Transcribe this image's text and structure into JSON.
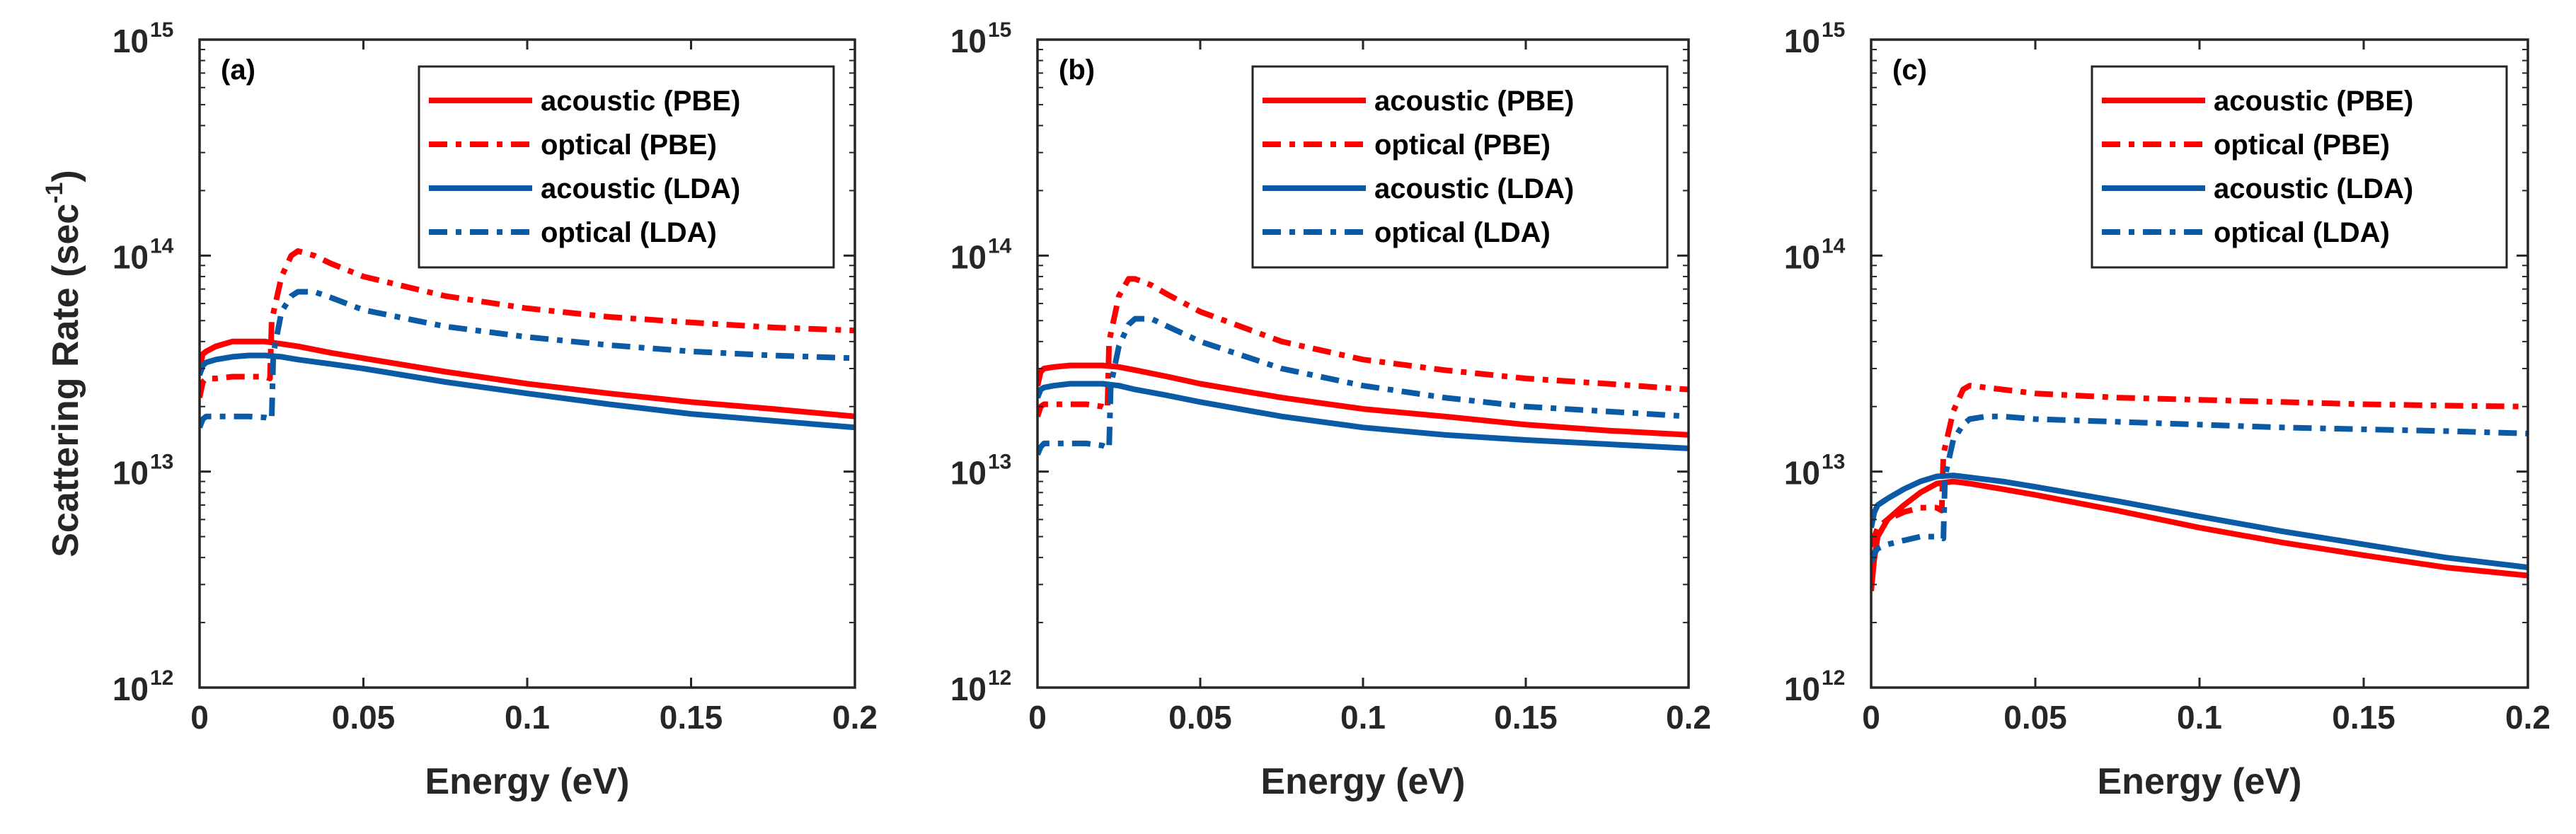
{
  "colors": {
    "pbe": "#ff0000",
    "lda": "#0b5aa6",
    "axis": "#262626"
  },
  "chart_data": [
    {
      "type": "line",
      "panel": "(a)",
      "xlabel": "Energy (eV)",
      "ylabel": "Scattering Rate (sec",
      "ylabel_sup": "-1",
      "ylabel_tail": ")",
      "yscale": "log",
      "xlim": [
        0,
        0.2
      ],
      "ylim": [
        1000000000000.0,
        1000000000000000.0
      ],
      "xticks": [
        "0",
        "0.05",
        "0.1",
        "0.15",
        "0.2"
      ],
      "yticks": [
        {
          "base": "10",
          "exp": "12"
        },
        {
          "base": "10",
          "exp": "13"
        },
        {
          "base": "10",
          "exp": "14"
        },
        {
          "base": "10",
          "exp": "15"
        }
      ],
      "legend_position": "top-right",
      "series": [
        {
          "name": "acoustic (PBE)",
          "color": "#ff0000",
          "style": "solid",
          "x": [
            0,
            0.001,
            0.002,
            0.005,
            0.01,
            0.015,
            0.02,
            0.025,
            0.03,
            0.04,
            0.05,
            0.075,
            0.1,
            0.125,
            0.15,
            0.175,
            0.2
          ],
          "y": [
            30000000000000.0,
            35000000000000.0,
            36000000000000.0,
            38000000000000.0,
            40000000000000.0,
            40000000000000.0,
            40000000000000.0,
            39000000000000.0,
            38000000000000.0,
            35500000000000.0,
            33500000000000.0,
            29000000000000.0,
            25500000000000.0,
            23000000000000.0,
            21000000000000.0,
            19500000000000.0,
            18000000000000.0
          ]
        },
        {
          "name": "optical (PBE)",
          "color": "#ff0000",
          "style": "dashdot",
          "x": [
            0,
            0.001,
            0.002,
            0.005,
            0.01,
            0.015,
            0.02,
            0.0215,
            0.022,
            0.025,
            0.028,
            0.03,
            0.035,
            0.04,
            0.05,
            0.075,
            0.1,
            0.125,
            0.15,
            0.175,
            0.2
          ],
          "y": [
            22000000000000.0,
            26000000000000.0,
            27000000000000.0,
            27000000000000.0,
            27500000000000.0,
            27500000000000.0,
            27500000000000.0,
            27000000000000.0,
            50000000000000.0,
            80000000000000.0,
            100000000000000.0,
            105000000000000.0,
            100000000000000.0,
            92000000000000.0,
            80000000000000.0,
            65000000000000.0,
            57000000000000.0,
            52000000000000.0,
            49000000000000.0,
            46500000000000.0,
            45000000000000.0
          ]
        },
        {
          "name": "acoustic (LDA)",
          "color": "#0b5aa6",
          "style": "solid",
          "x": [
            0,
            0.001,
            0.002,
            0.005,
            0.01,
            0.015,
            0.02,
            0.025,
            0.03,
            0.04,
            0.05,
            0.075,
            0.1,
            0.125,
            0.15,
            0.175,
            0.2
          ],
          "y": [
            28000000000000.0,
            31000000000000.0,
            32000000000000.0,
            33000000000000.0,
            34000000000000.0,
            34500000000000.0,
            34500000000000.0,
            34000000000000.0,
            33000000000000.0,
            31500000000000.0,
            30000000000000.0,
            26000000000000.0,
            23000000000000.0,
            20500000000000.0,
            18500000000000.0,
            17200000000000.0,
            16000000000000.0
          ]
        },
        {
          "name": "optical (LDA)",
          "color": "#0b5aa6",
          "style": "dashdot",
          "x": [
            0,
            0.001,
            0.002,
            0.005,
            0.01,
            0.015,
            0.02,
            0.022,
            0.0225,
            0.025,
            0.028,
            0.03,
            0.035,
            0.04,
            0.05,
            0.075,
            0.1,
            0.125,
            0.15,
            0.175,
            0.2
          ],
          "y": [
            16000000000000.0,
            17500000000000.0,
            18000000000000.0,
            18000000000000.0,
            18000000000000.0,
            18000000000000.0,
            17800000000000.0,
            17500000000000.0,
            35000000000000.0,
            55000000000000.0,
            65000000000000.0,
            68000000000000.0,
            68000000000000.0,
            64000000000000.0,
            56000000000000.0,
            47000000000000.0,
            42000000000000.0,
            38500000000000.0,
            36000000000000.0,
            34500000000000.0,
            33500000000000.0
          ]
        }
      ]
    },
    {
      "type": "line",
      "panel": "(b)",
      "xlabel": "Energy (eV)",
      "yscale": "log",
      "xlim": [
        0,
        0.2
      ],
      "ylim": [
        1000000000000.0,
        1000000000000000.0
      ],
      "xticks": [
        "0",
        "0.05",
        "0.1",
        "0.15",
        "0.2"
      ],
      "yticks": [
        {
          "base": "10",
          "exp": "12"
        },
        {
          "base": "10",
          "exp": "13"
        },
        {
          "base": "10",
          "exp": "14"
        },
        {
          "base": "10",
          "exp": "15"
        }
      ],
      "legend_position": "top-right",
      "series": [
        {
          "name": "acoustic (PBE)",
          "color": "#ff0000",
          "style": "solid",
          "x": [
            0,
            0.001,
            0.002,
            0.005,
            0.01,
            0.015,
            0.02,
            0.025,
            0.03,
            0.04,
            0.05,
            0.075,
            0.1,
            0.125,
            0.15,
            0.175,
            0.2
          ],
          "y": [
            25000000000000.0,
            29000000000000.0,
            30000000000000.0,
            30500000000000.0,
            31000000000000.0,
            31000000000000.0,
            31000000000000.0,
            30500000000000.0,
            29500000000000.0,
            27500000000000.0,
            25500000000000.0,
            22000000000000.0,
            19500000000000.0,
            18000000000000.0,
            16500000000000.0,
            15500000000000.0,
            14800000000000.0
          ]
        },
        {
          "name": "optical (PBE)",
          "color": "#ff0000",
          "style": "dashdot",
          "x": [
            0,
            0.001,
            0.002,
            0.005,
            0.01,
            0.015,
            0.02,
            0.0215,
            0.022,
            0.025,
            0.028,
            0.03,
            0.035,
            0.04,
            0.05,
            0.075,
            0.1,
            0.125,
            0.15,
            0.175,
            0.2
          ],
          "y": [
            18000000000000.0,
            20000000000000.0,
            20500000000000.0,
            20500000000000.0,
            20500000000000.0,
            20500000000000.0,
            20000000000000.0,
            19500000000000.0,
            40000000000000.0,
            65000000000000.0,
            78000000000000.0,
            78000000000000.0,
            73000000000000.0,
            66000000000000.0,
            55000000000000.0,
            40000000000000.0,
            33000000000000.0,
            29500000000000.0,
            27000000000000.0,
            25500000000000.0,
            24000000000000.0
          ]
        },
        {
          "name": "acoustic (LDA)",
          "color": "#0b5aa6",
          "style": "solid",
          "x": [
            0,
            0.001,
            0.002,
            0.005,
            0.01,
            0.015,
            0.02,
            0.025,
            0.03,
            0.04,
            0.05,
            0.075,
            0.1,
            0.125,
            0.15,
            0.175,
            0.2
          ],
          "y": [
            22000000000000.0,
            24000000000000.0,
            24500000000000.0,
            25000000000000.0,
            25500000000000.0,
            25500000000000.0,
            25500000000000.0,
            25000000000000.0,
            24000000000000.0,
            22500000000000.0,
            21000000000000.0,
            18000000000000.0,
            16000000000000.0,
            14800000000000.0,
            14000000000000.0,
            13400000000000.0,
            12800000000000.0
          ]
        },
        {
          "name": "optical (LDA)",
          "color": "#0b5aa6",
          "style": "dashdot",
          "x": [
            0,
            0.001,
            0.002,
            0.005,
            0.01,
            0.015,
            0.02,
            0.022,
            0.0225,
            0.025,
            0.028,
            0.03,
            0.035,
            0.04,
            0.05,
            0.075,
            0.1,
            0.125,
            0.15,
            0.175,
            0.2
          ],
          "y": [
            12000000000000.0,
            13000000000000.0,
            13500000000000.0,
            13500000000000.0,
            13500000000000.0,
            13500000000000.0,
            13200000000000.0,
            12800000000000.0,
            25000000000000.0,
            38000000000000.0,
            48000000000000.0,
            51000000000000.0,
            51000000000000.0,
            47000000000000.0,
            40000000000000.0,
            30000000000000.0,
            25000000000000.0,
            22000000000000.0,
            20000000000000.0,
            19000000000000.0,
            18000000000000.0
          ]
        }
      ]
    },
    {
      "type": "line",
      "panel": "(c)",
      "xlabel": "Energy (eV)",
      "yscale": "log",
      "xlim": [
        0,
        0.2
      ],
      "ylim": [
        1000000000000.0,
        1000000000000000.0
      ],
      "xticks": [
        "0",
        "0.05",
        "0.1",
        "0.15",
        "0.2"
      ],
      "yticks": [
        {
          "base": "10",
          "exp": "12"
        },
        {
          "base": "10",
          "exp": "13"
        },
        {
          "base": "10",
          "exp": "14"
        },
        {
          "base": "10",
          "exp": "15"
        }
      ],
      "legend_position": "top-right",
      "series": [
        {
          "name": "acoustic (PBE)",
          "color": "#ff0000",
          "style": "solid",
          "x": [
            0,
            0.001,
            0.002,
            0.005,
            0.01,
            0.015,
            0.02,
            0.025,
            0.03,
            0.04,
            0.05,
            0.075,
            0.1,
            0.125,
            0.15,
            0.175,
            0.2
          ],
          "y": [
            2800000000000.0,
            4000000000000.0,
            5000000000000.0,
            6000000000000.0,
            7000000000000.0,
            8000000000000.0,
            8800000000000.0,
            9000000000000.0,
            8800000000000.0,
            8300000000000.0,
            7800000000000.0,
            6600000000000.0,
            5500000000000.0,
            4700000000000.0,
            4100000000000.0,
            3600000000000.0,
            3300000000000.0
          ]
        },
        {
          "name": "optical (PBE)",
          "color": "#ff0000",
          "style": "dashdot",
          "x": [
            0,
            0.001,
            0.002,
            0.005,
            0.01,
            0.015,
            0.02,
            0.0215,
            0.022,
            0.025,
            0.028,
            0.03,
            0.035,
            0.04,
            0.05,
            0.075,
            0.1,
            0.125,
            0.15,
            0.175,
            0.2
          ],
          "y": [
            4500000000000.0,
            5000000000000.0,
            5500000000000.0,
            6000000000000.0,
            6500000000000.0,
            6800000000000.0,
            6800000000000.0,
            6600000000000.0,
            12000000000000.0,
            19000000000000.0,
            24000000000000.0,
            25000000000000.0,
            24500000000000.0,
            24000000000000.0,
            23000000000000.0,
            22000000000000.0,
            21500000000000.0,
            21000000000000.0,
            20500000000000.0,
            20200000000000.0,
            20000000000000.0
          ]
        },
        {
          "name": "acoustic (LDA)",
          "color": "#0b5aa6",
          "style": "solid",
          "x": [
            0,
            0.001,
            0.002,
            0.005,
            0.01,
            0.015,
            0.02,
            0.025,
            0.03,
            0.04,
            0.05,
            0.075,
            0.1,
            0.125,
            0.15,
            0.175,
            0.2
          ],
          "y": [
            5500000000000.0,
            6500000000000.0,
            7000000000000.0,
            7500000000000.0,
            8300000000000.0,
            9000000000000.0,
            9500000000000.0,
            9600000000000.0,
            9400000000000.0,
            9000000000000.0,
            8500000000000.0,
            7300000000000.0,
            6200000000000.0,
            5300000000000.0,
            4600000000000.0,
            4000000000000.0,
            3600000000000.0
          ]
        },
        {
          "name": "optical (LDA)",
          "color": "#0b5aa6",
          "style": "dashdot",
          "x": [
            0,
            0.001,
            0.002,
            0.005,
            0.01,
            0.015,
            0.02,
            0.022,
            0.0225,
            0.025,
            0.028,
            0.03,
            0.035,
            0.04,
            0.05,
            0.075,
            0.1,
            0.125,
            0.15,
            0.175,
            0.2
          ],
          "y": [
            3800000000000.0,
            4200000000000.0,
            4400000000000.0,
            4600000000000.0,
            4800000000000.0,
            5000000000000.0,
            5000000000000.0,
            4900000000000.0,
            9500000000000.0,
            14000000000000.0,
            16500000000000.0,
            17500000000000.0,
            18000000000000.0,
            18000000000000.0,
            17500000000000.0,
            17000000000000.0,
            16500000000000.0,
            16000000000000.0,
            15700000000000.0,
            15400000000000.0,
            15000000000000.0
          ]
        }
      ]
    }
  ]
}
